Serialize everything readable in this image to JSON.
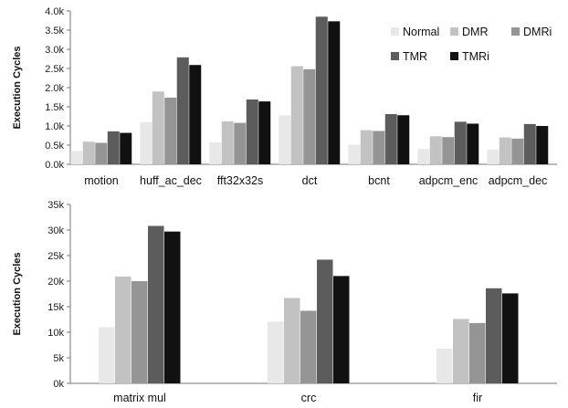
{
  "chart_data": [
    {
      "type": "bar",
      "ylabel": "Execution Cycles",
      "ylim": [
        0,
        4000
      ],
      "yticks": [
        "0.0k",
        "0.5k",
        "1.0k",
        "1.5k",
        "2.0k",
        "2.5k",
        "3.0k",
        "3.5k",
        "4.0k"
      ],
      "grid": false,
      "legend_position": "top-right",
      "categories": [
        "motion",
        "huff_ac_dec",
        "fft32x32s",
        "dct",
        "bcnt",
        "adpcm_enc",
        "adpcm_dec"
      ],
      "series": [
        {
          "name": "Normal",
          "color": "#e8e8e8",
          "values": [
            350,
            1100,
            570,
            1280,
            510,
            400,
            380
          ]
        },
        {
          "name": "DMR",
          "color": "#c2c2c2",
          "values": [
            590,
            1900,
            1120,
            2560,
            890,
            730,
            700
          ]
        },
        {
          "name": "DMRi",
          "color": "#959595",
          "values": [
            560,
            1740,
            1080,
            2480,
            870,
            710,
            670
          ]
        },
        {
          "name": "TMR",
          "color": "#5c5c5c",
          "values": [
            860,
            2790,
            1690,
            3850,
            1310,
            1110,
            1050
          ]
        },
        {
          "name": "TMRi",
          "color": "#111111",
          "values": [
            820,
            2590,
            1640,
            3730,
            1280,
            1060,
            1000
          ]
        }
      ]
    },
    {
      "type": "bar",
      "ylabel": "Execution Cycles",
      "ylim": [
        0,
        35000
      ],
      "yticks": [
        "0k",
        "5k",
        "10k",
        "15k",
        "20k",
        "25k",
        "30k",
        "35k"
      ],
      "grid": false,
      "categories": [
        "matrix_mul",
        "crc",
        "fir"
      ],
      "category_labels": [
        "matrix  mul",
        "crc",
        "fir"
      ],
      "series": [
        {
          "name": "Normal",
          "color": "#e8e8e8",
          "values": [
            11000,
            12100,
            6800
          ]
        },
        {
          "name": "DMR",
          "color": "#c2c2c2",
          "values": [
            20900,
            16700,
            12600
          ]
        },
        {
          "name": "DMRi",
          "color": "#959595",
          "values": [
            20000,
            14200,
            11800
          ]
        },
        {
          "name": "TMR",
          "color": "#5c5c5c",
          "values": [
            30800,
            24200,
            18600
          ]
        },
        {
          "name": "TMRi",
          "color": "#111111",
          "values": [
            29700,
            21000,
            17600
          ]
        }
      ]
    }
  ]
}
